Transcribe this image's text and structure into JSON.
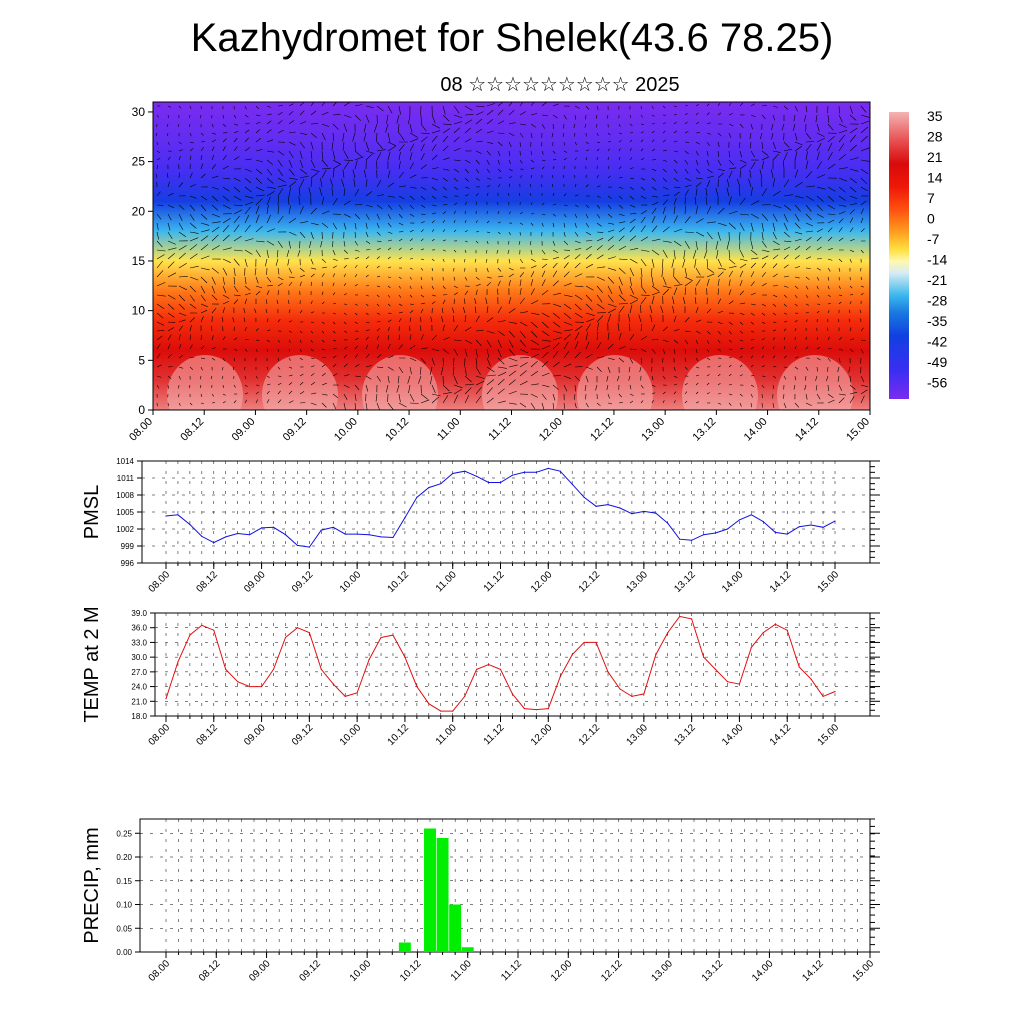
{
  "header": {
    "title": "Kazhydromet for Shelek(43.6 78.25)",
    "subtitle": "08 ☆☆☆☆☆☆☆☆☆ 2025"
  },
  "colors": {
    "pmsl_line": "#1010e0",
    "temp_line": "#e01010",
    "precip_bar": "#00ee00",
    "vectors": "#000000"
  },
  "chart_data": [
    {
      "type": "heatmap",
      "name": "cross-section",
      "x_ticks": [
        "08.00",
        "08.12",
        "09.00",
        "09.12",
        "10.00",
        "10.12",
        "11.00",
        "11.12",
        "12.00",
        "12.12",
        "13.00",
        "13.12",
        "14.00",
        "14.12",
        "15.00"
      ],
      "y_ticks": [
        "0",
        "5",
        "10",
        "15",
        "20",
        "25",
        "30"
      ],
      "ylim": [
        0,
        31
      ],
      "colorbar_labels": [
        "35",
        "28",
        "21",
        "14",
        "7",
        "0",
        "-7",
        "-14",
        "-21",
        "-28",
        "-35",
        "-42",
        "-49",
        "-56"
      ],
      "colorbar_range": [
        -60,
        37
      ],
      "temperature_profile": {
        "levels": [
          0,
          3,
          6,
          9,
          12,
          15,
          18,
          21,
          24,
          27,
          31
        ],
        "values": [
          32,
          24,
          18,
          9,
          0,
          -10,
          -25,
          -40,
          -52,
          -56,
          -60
        ]
      },
      "overlay": "wind vectors"
    },
    {
      "type": "line",
      "name": "pmsl",
      "ylabel": "PMSL",
      "ylim": [
        996,
        1014
      ],
      "y_ticks": [
        "996",
        "999",
        "1002",
        "1005",
        "1008",
        "1011",
        "1014"
      ],
      "x_ticks": [
        "08.00",
        "08.12",
        "09.00",
        "09.12",
        "10.00",
        "10.12",
        "11.00",
        "11.12",
        "12.00",
        "12.12",
        "13.00",
        "13.12",
        "14.00",
        "14.12",
        "15.00"
      ],
      "x_step_hours": 3,
      "values": [
        1004.3,
        1004.5,
        1002.8,
        1000.7,
        999.6,
        1000.6,
        1001.2,
        1001.0,
        1002.2,
        1002.3,
        1001.0,
        999.1,
        998.8,
        1001.8,
        1002.3,
        1001.1,
        1001.1,
        1001.0,
        1000.6,
        1000.5,
        1004.0,
        1007.6,
        1009.3,
        1010.0,
        1011.8,
        1012.2,
        1011.3,
        1010.2,
        1010.2,
        1011.5,
        1012.0,
        1012.0,
        1012.7,
        1012.2,
        1009.9,
        1007.6,
        1006.0,
        1006.3,
        1005.7,
        1004.7,
        1005.1,
        1004.8,
        1003.0,
        1000.2,
        1000.0,
        1001.0,
        1001.3,
        1002.0,
        1003.6,
        1004.5,
        1003.3,
        1001.4,
        1001.1,
        1002.4,
        1002.7,
        1002.3,
        1003.4
      ]
    },
    {
      "type": "line",
      "name": "temperature",
      "ylabel": "TEMP at 2 M",
      "ylim": [
        18,
        39
      ],
      "y_ticks": [
        "18.0",
        "21.0",
        "24.0",
        "27.0",
        "30.0",
        "33.0",
        "36.0",
        "39.0"
      ],
      "x_ticks": [
        "08.00",
        "08.12",
        "09.00",
        "09.12",
        "10.00",
        "10.12",
        "11.00",
        "11.12",
        "12.00",
        "12.12",
        "13.00",
        "13.12",
        "14.00",
        "14.12",
        "15.00"
      ],
      "x_step_hours": 3,
      "values": [
        21.5,
        29.0,
        34.5,
        36.5,
        35.5,
        27.5,
        25.0,
        24.0,
        24.0,
        27.5,
        34.0,
        36.0,
        35.0,
        27.5,
        24.5,
        22.0,
        22.7,
        29.5,
        34.0,
        34.5,
        30.0,
        24.0,
        20.5,
        19.0,
        19.0,
        22.0,
        27.5,
        28.5,
        27.5,
        22.5,
        19.5,
        19.3,
        19.5,
        26.0,
        30.5,
        33.0,
        33.0,
        27.0,
        23.5,
        22.0,
        22.5,
        30.5,
        35.0,
        38.3,
        37.8,
        30.0,
        27.5,
        25.0,
        24.5,
        32.0,
        35.0,
        36.7,
        35.5,
        28.0,
        25.5,
        22.0,
        23.0
      ]
    },
    {
      "type": "bar",
      "name": "precipitation",
      "ylabel": "PRECIP, mm",
      "ylim": [
        0,
        0.28
      ],
      "y_ticks": [
        "0.00",
        "0.05",
        "0.10",
        "0.15",
        "0.20",
        "0.25"
      ],
      "x_ticks": [
        "08.00",
        "08.12",
        "09.00",
        "09.12",
        "10.00",
        "10.12",
        "11.00",
        "11.12",
        "12.00",
        "12.12",
        "13.00",
        "13.12",
        "14.00",
        "14.12",
        "15.00"
      ],
      "x_step_hours": 3,
      "values": [
        0,
        0,
        0,
        0,
        0,
        0,
        0,
        0,
        0,
        0,
        0,
        0,
        0,
        0,
        0,
        0,
        0,
        0,
        0,
        0.02,
        0,
        0.26,
        0.24,
        0.1,
        0.01,
        0,
        0,
        0,
        0,
        0,
        0,
        0,
        0,
        0,
        0,
        0,
        0,
        0,
        0,
        0,
        0,
        0,
        0,
        0,
        0,
        0,
        0,
        0,
        0,
        0,
        0,
        0,
        0,
        0,
        0,
        0,
        0
      ]
    }
  ]
}
